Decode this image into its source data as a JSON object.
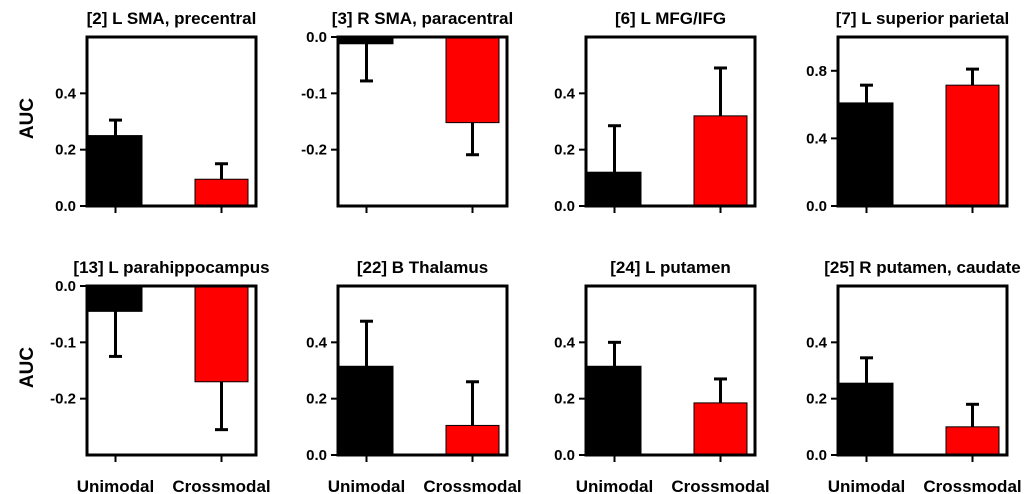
{
  "chart_data": [
    {
      "type": "bar",
      "title": "[2] L SMA, precentral",
      "ylabel": "AUC",
      "categories": [
        "Unimodal",
        "Crossmodal"
      ],
      "values": [
        0.25,
        0.095
      ],
      "errors": [
        0.055,
        0.055
      ],
      "ylim": [
        0,
        0.6
      ],
      "yticks": [
        0.0,
        0.2,
        0.4
      ],
      "tick_labels": [
        "0.0",
        "0.2",
        "0.4"
      ],
      "colors": [
        "#000000",
        "#ff0000"
      ]
    },
    {
      "type": "bar",
      "title": "[3] R SMA, paracentral",
      "ylabel": "",
      "categories": [
        "Unimodal",
        "Crossmodal"
      ],
      "values": [
        -0.012,
        -0.152
      ],
      "errors": [
        0.066,
        0.057
      ],
      "ylim": [
        -0.3,
        0.0
      ],
      "yticks": [
        0.0,
        -0.1,
        -0.2
      ],
      "tick_labels": [
        "0.0",
        "-0.1",
        "-0.2"
      ],
      "colors": [
        "#000000",
        "#ff0000"
      ]
    },
    {
      "type": "bar",
      "title": "[6] L MFG/IFG",
      "ylabel": "",
      "categories": [
        "Unimodal",
        "Crossmodal"
      ],
      "values": [
        0.12,
        0.32
      ],
      "errors": [
        0.165,
        0.17
      ],
      "ylim": [
        0,
        0.6
      ],
      "yticks": [
        0.0,
        0.2,
        0.4
      ],
      "tick_labels": [
        "0.0",
        "0.2",
        "0.4"
      ],
      "colors": [
        "#000000",
        "#ff0000"
      ]
    },
    {
      "type": "bar",
      "title": "[7] L superior parietal",
      "ylabel": "",
      "categories": [
        "Unimodal",
        "Crossmodal"
      ],
      "values": [
        0.61,
        0.715
      ],
      "errors": [
        0.105,
        0.095
      ],
      "ylim": [
        0,
        1.0
      ],
      "yticks": [
        0.0,
        0.4,
        0.8
      ],
      "tick_labels": [
        "0.0",
        "0.4",
        "0.8"
      ],
      "colors": [
        "#000000",
        "#ff0000"
      ]
    },
    {
      "type": "bar",
      "title": "[13] L parahippocampus",
      "ylabel": "AUC",
      "categories": [
        "Unimodal",
        "Crossmodal"
      ],
      "values": [
        -0.045,
        -0.17
      ],
      "errors": [
        0.08,
        0.085
      ],
      "ylim": [
        -0.3,
        0.0
      ],
      "yticks": [
        0.0,
        -0.1,
        -0.2
      ],
      "tick_labels": [
        "0.0",
        "-0.1",
        "-0.2"
      ],
      "colors": [
        "#000000",
        "#ff0000"
      ]
    },
    {
      "type": "bar",
      "title": "[22] B Thalamus",
      "ylabel": "",
      "categories": [
        "Unimodal",
        "Crossmodal"
      ],
      "values": [
        0.315,
        0.105
      ],
      "errors": [
        0.16,
        0.155
      ],
      "ylim": [
        0,
        0.6
      ],
      "yticks": [
        0.0,
        0.2,
        0.4
      ],
      "tick_labels": [
        "0.0",
        "0.2",
        "0.4"
      ],
      "colors": [
        "#000000",
        "#ff0000"
      ]
    },
    {
      "type": "bar",
      "title": "[24] L putamen",
      "ylabel": "",
      "categories": [
        "Unimodal",
        "Crossmodal"
      ],
      "values": [
        0.315,
        0.185
      ],
      "errors": [
        0.085,
        0.085
      ],
      "ylim": [
        0,
        0.6
      ],
      "yticks": [
        0.0,
        0.2,
        0.4
      ],
      "tick_labels": [
        "0.0",
        "0.2",
        "0.4"
      ],
      "colors": [
        "#000000",
        "#ff0000"
      ]
    },
    {
      "type": "bar",
      "title": "[25] R putamen, caudate",
      "ylabel": "",
      "categories": [
        "Unimodal",
        "Crossmodal"
      ],
      "values": [
        0.255,
        0.1
      ],
      "errors": [
        0.09,
        0.08
      ],
      "ylim": [
        0,
        0.6
      ],
      "yticks": [
        0.0,
        0.2,
        0.4
      ],
      "tick_labels": [
        "0.0",
        "0.2",
        "0.4"
      ],
      "colors": [
        "#000000",
        "#ff0000"
      ]
    }
  ]
}
